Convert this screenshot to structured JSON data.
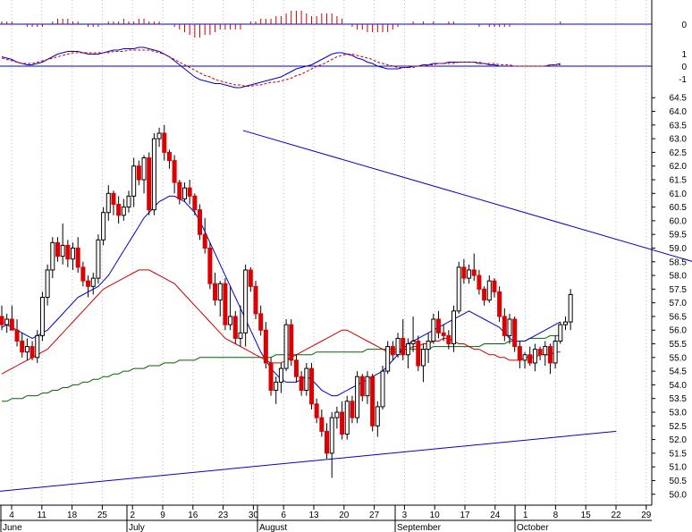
{
  "chart_data": {
    "type": "candlestick",
    "x_labels": {
      "days": [
        "4",
        "11",
        "18",
        "25",
        "2",
        "9",
        "16",
        "23",
        "30",
        "6",
        "13",
        "20",
        "27",
        "3",
        "10",
        "17",
        "24",
        "1",
        "8",
        "15",
        "22",
        "29"
      ],
      "months": [
        "June",
        "July",
        "August",
        "September",
        "October"
      ]
    },
    "price_axis": {
      "ylim": [
        49.6,
        64.9
      ],
      "ticks": [
        "64.5",
        "64.0",
        "63.5",
        "63.0",
        "62.5",
        "62.0",
        "61.5",
        "61.0",
        "60.5",
        "60.0",
        "59.5",
        "59.0",
        "58.5",
        "58.0",
        "57.5",
        "57.0",
        "56.5",
        "56.0",
        "55.5",
        "55.0",
        "54.5",
        "54.0",
        "53.5",
        "53.0",
        "52.5",
        "52.0",
        "51.5",
        "51.0",
        "50.5",
        "50.0"
      ]
    },
    "macd_axis": {
      "ticks": [
        "1",
        "0",
        "-1"
      ]
    },
    "hist_axis": {
      "ticks": [
        "0"
      ]
    },
    "candles": [
      [
        56.5,
        56.9,
        56.0,
        56.2
      ],
      [
        56.2,
        56.6,
        55.9,
        56.4
      ],
      [
        56.4,
        56.9,
        56.1,
        56.0
      ],
      [
        56.0,
        56.4,
        55.4,
        55.6
      ],
      [
        55.6,
        55.9,
        55.0,
        55.2
      ],
      [
        55.2,
        55.7,
        54.9,
        55.4
      ],
      [
        55.4,
        55.6,
        54.9,
        55.0
      ],
      [
        55.0,
        56.0,
        54.8,
        55.8
      ],
      [
        55.8,
        57.4,
        55.6,
        57.2
      ],
      [
        57.2,
        58.4,
        56.9,
        58.2
      ],
      [
        58.2,
        59.4,
        57.9,
        59.2
      ],
      [
        59.2,
        59.4,
        58.5,
        58.7
      ],
      [
        58.7,
        59.9,
        58.4,
        59.1
      ],
      [
        59.1,
        59.3,
        58.3,
        58.6
      ],
      [
        58.6,
        59.2,
        58.2,
        59.0
      ],
      [
        59.0,
        59.4,
        58.1,
        58.3
      ],
      [
        58.3,
        58.5,
        57.6,
        57.8
      ],
      [
        57.8,
        58.0,
        57.2,
        57.6
      ],
      [
        57.6,
        58.1,
        57.3,
        57.9
      ],
      [
        57.9,
        59.5,
        57.7,
        59.3
      ],
      [
        59.3,
        60.5,
        59.1,
        60.3
      ],
      [
        60.3,
        61.3,
        60.0,
        61.0
      ],
      [
        61.0,
        61.1,
        60.2,
        60.6
      ],
      [
        60.6,
        60.9,
        59.9,
        60.2
      ],
      [
        60.2,
        60.8,
        60.0,
        60.5
      ],
      [
        60.5,
        61.1,
        60.3,
        60.9
      ],
      [
        60.9,
        62.3,
        60.5,
        62.0
      ],
      [
        62.0,
        62.2,
        61.3,
        61.5
      ],
      [
        61.5,
        62.4,
        61.0,
        62.3
      ],
      [
        62.3,
        62.5,
        60.2,
        60.4
      ],
      [
        60.4,
        63.2,
        60.2,
        63.0
      ],
      [
        63.0,
        63.4,
        62.7,
        63.2
      ],
      [
        63.2,
        63.5,
        62.2,
        62.5
      ],
      [
        62.5,
        62.6,
        61.9,
        62.2
      ],
      [
        62.2,
        62.4,
        61.0,
        61.4
      ],
      [
        61.4,
        61.5,
        60.6,
        60.8
      ],
      [
        60.8,
        61.4,
        60.7,
        61.2
      ],
      [
        61.2,
        61.5,
        60.6,
        60.9
      ],
      [
        60.9,
        61.0,
        60.2,
        60.4
      ],
      [
        60.4,
        60.6,
        59.3,
        59.5
      ],
      [
        59.5,
        60.1,
        58.8,
        59.0
      ],
      [
        59.0,
        59.2,
        57.5,
        57.7
      ],
      [
        57.7,
        58.1,
        56.9,
        57.1
      ],
      [
        57.1,
        57.8,
        56.5,
        57.7
      ],
      [
        57.7,
        57.9,
        56.0,
        56.2
      ],
      [
        56.2,
        57.6,
        56.0,
        56.5
      ],
      [
        56.5,
        56.7,
        55.5,
        55.7
      ],
      [
        55.7,
        56.9,
        55.4,
        55.9
      ],
      [
        55.9,
        58.4,
        55.4,
        58.2
      ],
      [
        58.2,
        58.3,
        57.4,
        57.6
      ],
      [
        57.6,
        57.8,
        56.4,
        56.6
      ],
      [
        56.6,
        56.9,
        55.8,
        56.0
      ],
      [
        56.0,
        56.3,
        54.6,
        54.8
      ],
      [
        54.8,
        55.0,
        53.6,
        53.8
      ],
      [
        53.8,
        54.3,
        53.3,
        54.1
      ],
      [
        54.1,
        54.8,
        53.7,
        54.6
      ],
      [
        54.6,
        56.4,
        54.5,
        56.2
      ],
      [
        56.2,
        56.4,
        54.7,
        54.9
      ],
      [
        54.9,
        55.1,
        54.1,
        54.3
      ],
      [
        54.3,
        54.5,
        53.6,
        53.8
      ],
      [
        53.8,
        54.8,
        53.6,
        54.6
      ],
      [
        54.6,
        54.8,
        53.1,
        53.3
      ],
      [
        53.3,
        53.5,
        52.6,
        52.8
      ],
      [
        52.8,
        53.1,
        52.1,
        52.3
      ],
      [
        52.3,
        52.6,
        51.3,
        51.5
      ],
      [
        51.5,
        53.0,
        50.6,
        52.8
      ],
      [
        52.8,
        53.2,
        52.4,
        53.0
      ],
      [
        53.0,
        53.4,
        52.0,
        52.2
      ],
      [
        52.2,
        53.6,
        52.0,
        53.4
      ],
      [
        53.4,
        53.6,
        52.6,
        52.8
      ],
      [
        52.8,
        54.5,
        52.6,
        54.3
      ],
      [
        54.3,
        54.4,
        53.4,
        53.6
      ],
      [
        53.6,
        54.5,
        53.3,
        54.3
      ],
      [
        54.3,
        54.4,
        52.3,
        52.5
      ],
      [
        52.5,
        53.4,
        52.1,
        53.2
      ],
      [
        53.2,
        54.7,
        53.1,
        54.5
      ],
      [
        54.5,
        55.6,
        54.4,
        55.4
      ],
      [
        55.4,
        55.6,
        54.9,
        55.1
      ],
      [
        55.1,
        55.9,
        55.0,
        55.7
      ],
      [
        55.7,
        56.4,
        54.9,
        55.1
      ],
      [
        55.1,
        55.7,
        54.6,
        55.5
      ],
      [
        55.5,
        56.5,
        55.2,
        55.6
      ],
      [
        55.6,
        55.8,
        54.5,
        54.7
      ],
      [
        54.7,
        55.5,
        54.1,
        55.3
      ],
      [
        55.3,
        55.9,
        54.8,
        55.6
      ],
      [
        55.6,
        56.6,
        55.5,
        56.4
      ],
      [
        56.4,
        56.7,
        55.7,
        55.9
      ],
      [
        55.9,
        56.2,
        55.6,
        55.8
      ],
      [
        55.8,
        56.0,
        55.3,
        55.5
      ],
      [
        55.5,
        56.9,
        55.2,
        56.7
      ],
      [
        56.7,
        58.5,
        56.6,
        58.3
      ],
      [
        58.3,
        58.6,
        57.7,
        57.9
      ],
      [
        57.9,
        58.4,
        57.7,
        58.2
      ],
      [
        58.2,
        58.8,
        57.8,
        58.0
      ],
      [
        58.0,
        58.2,
        57.3,
        57.5
      ],
      [
        57.5,
        57.6,
        56.9,
        57.1
      ],
      [
        57.1,
        58.0,
        57.0,
        57.8
      ],
      [
        57.8,
        57.9,
        57.2,
        57.4
      ],
      [
        57.4,
        57.6,
        56.3,
        56.5
      ],
      [
        56.5,
        56.8,
        55.6,
        55.8
      ],
      [
        55.8,
        56.6,
        55.5,
        56.4
      ],
      [
        56.4,
        56.5,
        55.2,
        55.4
      ],
      [
        55.4,
        55.6,
        54.6,
        54.9
      ],
      [
        54.9,
        55.2,
        54.6,
        55.1
      ],
      [
        55.1,
        55.4,
        54.7,
        54.8
      ],
      [
        54.8,
        55.5,
        54.5,
        55.3
      ],
      [
        55.3,
        55.4,
        54.9,
        55.1
      ],
      [
        55.1,
        55.6,
        54.7,
        55.4
      ],
      [
        55.4,
        55.5,
        54.4,
        54.8
      ],
      [
        54.8,
        55.8,
        54.6,
        55.6
      ],
      [
        55.6,
        56.3,
        55.5,
        56.2
      ],
      [
        56.2,
        56.5,
        56.0,
        56.3
      ],
      [
        56.3,
        57.5,
        56.0,
        57.3
      ]
    ],
    "sma_short": [
      56.1,
      56.2,
      56.1,
      56.0,
      55.9,
      55.8,
      55.7,
      55.8,
      55.9,
      56.0,
      56.2,
      56.4,
      56.6,
      56.8,
      57.0,
      57.2,
      57.3,
      57.4,
      57.5,
      57.6,
      57.8,
      58.0,
      58.3,
      58.6,
      58.9,
      59.2,
      59.5,
      59.8,
      60.1,
      60.3,
      60.5,
      60.7,
      60.8,
      60.9,
      60.9,
      60.8,
      60.7,
      60.5,
      60.3,
      60.0,
      59.6,
      59.2,
      58.8,
      58.4,
      58.0,
      57.6,
      57.2,
      56.8,
      56.4,
      56.0,
      55.6,
      55.2,
      54.9,
      54.6,
      54.4,
      54.2,
      54.1,
      54.1,
      54.1,
      54.2,
      54.3,
      54.2,
      54.0,
      53.8,
      53.7,
      53.6,
      53.6,
      53.7,
      53.8,
      53.9,
      54.0,
      54.1,
      54.2,
      54.3,
      54.4,
      54.5,
      54.7,
      54.9,
      55.1,
      55.3,
      55.5,
      55.6,
      55.7,
      55.8,
      55.9,
      56.0,
      56.1,
      56.2,
      56.3,
      56.4,
      56.5,
      56.6,
      56.7,
      56.6,
      56.5,
      56.4,
      56.3,
      56.2,
      56.1,
      55.9,
      55.7,
      55.6,
      55.6,
      55.6,
      55.7,
      55.8,
      55.9,
      56.0,
      56.1,
      56.2,
      56.3
    ],
    "sma_mid": [
      54.4,
      54.5,
      54.6,
      54.7,
      54.8,
      54.9,
      55.0,
      55.1,
      55.2,
      55.3,
      55.5,
      55.7,
      55.9,
      56.1,
      56.3,
      56.5,
      56.7,
      56.9,
      57.1,
      57.3,
      57.5,
      57.6,
      57.7,
      57.8,
      57.9,
      58.0,
      58.1,
      58.2,
      58.2,
      58.2,
      58.1,
      58.0,
      57.9,
      57.8,
      57.7,
      57.5,
      57.3,
      57.1,
      56.9,
      56.7,
      56.5,
      56.3,
      56.1,
      55.9,
      55.7,
      55.6,
      55.5,
      55.4,
      55.3,
      55.2,
      55.1,
      55.0,
      54.9,
      54.8,
      54.8,
      54.8,
      54.9,
      55.0,
      55.1,
      55.2,
      55.3,
      55.4,
      55.5,
      55.6,
      55.7,
      55.8,
      55.9,
      56.0,
      56.0,
      55.9,
      55.8,
      55.7,
      55.6,
      55.5,
      55.4,
      55.3,
      55.2,
      55.2,
      55.2,
      55.3,
      55.3,
      55.4,
      55.4,
      55.5,
      55.5,
      55.6,
      55.6,
      55.7,
      55.7,
      55.6,
      55.5,
      55.5,
      55.4,
      55.3,
      55.3,
      55.2,
      55.1,
      55.1,
      55.0,
      55.0,
      54.9,
      54.9,
      54.9,
      55.0,
      55.0,
      55.0,
      55.1,
      55.1,
      55.1,
      55.2,
      55.2
    ],
    "sma_long": [
      53.4,
      53.4,
      53.5,
      53.5,
      53.5,
      53.6,
      53.6,
      53.6,
      53.7,
      53.7,
      53.8,
      53.8,
      53.9,
      53.9,
      54.0,
      54.0,
      54.1,
      54.1,
      54.2,
      54.2,
      54.3,
      54.3,
      54.4,
      54.4,
      54.5,
      54.5,
      54.6,
      54.6,
      54.6,
      54.7,
      54.7,
      54.7,
      54.8,
      54.8,
      54.8,
      54.9,
      54.9,
      54.9,
      54.9,
      55.0,
      55.0,
      55.0,
      55.0,
      55.0,
      55.0,
      55.0,
      55.0,
      55.0,
      55.0,
      55.0,
      55.0,
      55.0,
      55.0,
      55.0,
      55.1,
      55.1,
      55.1,
      55.1,
      55.1,
      55.1,
      55.1,
      55.1,
      55.2,
      55.2,
      55.2,
      55.2,
      55.2,
      55.2,
      55.2,
      55.2,
      55.2,
      55.2,
      55.3,
      55.3,
      55.3,
      55.3,
      55.3,
      55.3,
      55.3,
      55.3,
      55.3,
      55.3,
      55.3,
      55.3,
      55.3,
      55.4,
      55.4,
      55.4,
      55.4,
      55.4,
      55.4,
      55.4,
      55.4,
      55.4,
      55.4,
      55.5,
      55.5,
      55.5,
      55.5,
      55.5,
      55.6,
      55.6,
      55.6,
      55.6,
      55.7,
      55.7,
      55.7,
      55.7,
      55.8,
      55.8,
      55.8
    ],
    "trendlines": [
      {
        "x1": 47.5,
        "y1": 63.3,
        "x2": 175,
        "y2": 56.4,
        "color": "#0000cc"
      },
      {
        "x1": -1,
        "y1": 50.1,
        "x2": 121,
        "y2": 52.3,
        "color": "#0000cc"
      }
    ],
    "macd_line": [
      0.7,
      0.6,
      0.5,
      0.3,
      0.2,
      0.1,
      0.1,
      0.2,
      0.3,
      0.5,
      0.7,
      0.9,
      1.0,
      1.1,
      1.1,
      1.1,
      1.0,
      0.9,
      0.9,
      0.9,
      1.0,
      1.1,
      1.2,
      1.2,
      1.3,
      1.3,
      1.3,
      1.4,
      1.4,
      1.3,
      1.2,
      1.1,
      0.9,
      0.7,
      0.4,
      0.1,
      -0.2,
      -0.5,
      -0.8,
      -1.0,
      -1.1,
      -1.2,
      -1.3,
      -1.3,
      -1.4,
      -1.5,
      -1.6,
      -1.6,
      -1.5,
      -1.4,
      -1.3,
      -1.2,
      -1.1,
      -1.0,
      -0.9,
      -0.8,
      -0.6,
      -0.4,
      -0.2,
      -0.1,
      0.0,
      0.1,
      0.3,
      0.5,
      0.7,
      0.9,
      1.0,
      1.0,
      0.9,
      0.8,
      0.6,
      0.5,
      0.3,
      0.2,
      0.0,
      -0.1,
      -0.2,
      -0.2,
      -0.2,
      -0.1,
      -0.1,
      0.0,
      0.0,
      0.1,
      0.1,
      0.2,
      0.2,
      0.2,
      0.3,
      0.3,
      0.3,
      0.3,
      0.3,
      0.3,
      0.2,
      0.2,
      0.1,
      0.1,
      0.0,
      0.0,
      0.0,
      0.0,
      0.0,
      0.0,
      0.0,
      0.0,
      0.0,
      0.0,
      0.1,
      0.1,
      0.2
    ],
    "macd_signal": [
      0.6,
      0.5,
      0.4,
      0.3,
      0.2,
      0.2,
      0.2,
      0.3,
      0.4,
      0.5,
      0.6,
      0.7,
      0.8,
      0.9,
      1.0,
      1.0,
      1.0,
      1.0,
      1.0,
      1.0,
      1.0,
      1.0,
      1.1,
      1.1,
      1.1,
      1.2,
      1.2,
      1.2,
      1.2,
      1.2,
      1.1,
      1.0,
      0.9,
      0.7,
      0.5,
      0.3,
      0.1,
      -0.1,
      -0.3,
      -0.5,
      -0.7,
      -0.8,
      -1.0,
      -1.1,
      -1.2,
      -1.3,
      -1.4,
      -1.4,
      -1.5,
      -1.5,
      -1.4,
      -1.4,
      -1.3,
      -1.2,
      -1.2,
      -1.1,
      -1.0,
      -0.9,
      -0.7,
      -0.6,
      -0.4,
      -0.2,
      0.0,
      0.1,
      0.3,
      0.5,
      0.7,
      0.8,
      0.9,
      0.9,
      0.8,
      0.7,
      0.6,
      0.5,
      0.3,
      0.2,
      0.1,
      0.0,
      -0.1,
      -0.1,
      -0.1,
      -0.1,
      0.0,
      0.0,
      0.1,
      0.1,
      0.2,
      0.2,
      0.2,
      0.2,
      0.3,
      0.3,
      0.3,
      0.3,
      0.3,
      0.2,
      0.2,
      0.2,
      0.1,
      0.1,
      0.1,
      0.0,
      0.0,
      0.0,
      0.0,
      0.0,
      0.0,
      0.0,
      0.1,
      0.1,
      0.1
    ],
    "histogram": [
      0.1,
      0.1,
      0.1,
      0.0,
      0.0,
      -0.1,
      -0.1,
      -0.1,
      -0.1,
      0.0,
      0.1,
      0.2,
      0.2,
      0.2,
      0.1,
      0.1,
      0.0,
      -0.1,
      -0.1,
      -0.1,
      0.0,
      0.1,
      0.1,
      0.1,
      0.2,
      0.1,
      0.1,
      0.2,
      0.2,
      0.1,
      0.1,
      0.1,
      0.0,
      0.0,
      -0.1,
      -0.2,
      -0.3,
      -0.4,
      -0.5,
      -0.5,
      -0.4,
      -0.4,
      -0.3,
      -0.2,
      -0.2,
      -0.2,
      -0.2,
      -0.2,
      0.0,
      0.1,
      0.1,
      0.2,
      0.2,
      0.2,
      0.3,
      0.3,
      0.4,
      0.5,
      0.5,
      0.5,
      0.4,
      0.3,
      0.3,
      0.4,
      0.4,
      0.4,
      0.3,
      0.2,
      0.0,
      -0.1,
      -0.2,
      -0.2,
      -0.3,
      -0.3,
      -0.3,
      -0.3,
      -0.3,
      -0.2,
      -0.1,
      0.0,
      0.0,
      0.1,
      0.0,
      0.1,
      0.0,
      0.1,
      0.0,
      0.0,
      0.1,
      0.1,
      0.0,
      0.0,
      0.0,
      0.0,
      -0.1,
      0.0,
      -0.1,
      -0.1,
      -0.1,
      -0.1,
      -0.1,
      0.0,
      0.0,
      0.0,
      0.0,
      0.0,
      0.0,
      0.0,
      0.0,
      0.0,
      0.1
    ],
    "colors": {
      "up": "#ffffff",
      "down": "#dd0000",
      "candle_outline": "#000000",
      "sma_short": "#0000cc",
      "sma_mid": "#cc0000",
      "sma_long": "#006600",
      "trendline": "#0000cc",
      "macd": "#0000cc",
      "signal": "#cc0000",
      "hist_pos": "#cc0000",
      "hist_neg": "#cc0000",
      "axis": "#0000cc",
      "grid": "#bbbbbb"
    },
    "grid": true
  }
}
